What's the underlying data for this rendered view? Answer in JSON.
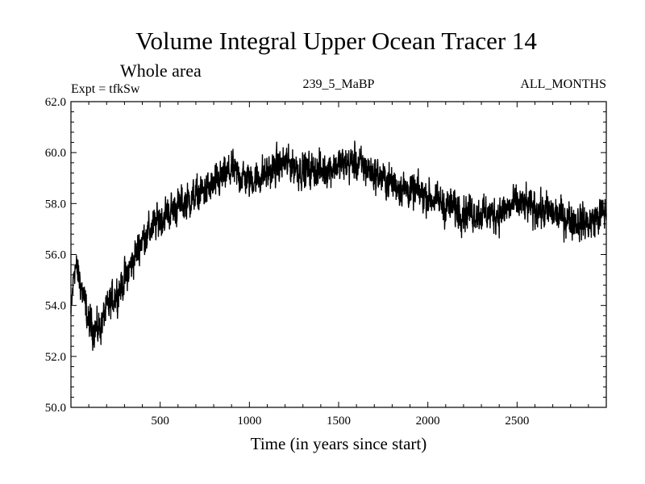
{
  "chart_data": {
    "type": "line",
    "title": "Volume Integral Upper Ocean Tracer 14",
    "subtitle": "Whole area",
    "experiment_label": "Expt = tfkSw",
    "run_label": "239_5_MaBP",
    "months_label": "ALL_MONTHS",
    "xlabel": "Time (in years since start)",
    "ylabel": "",
    "xlim": [
      0,
      3000
    ],
    "ylim": [
      50.0,
      62.0
    ],
    "x_ticks": [
      500,
      1000,
      1500,
      2000,
      2500
    ],
    "x_tick_labels": [
      "500",
      "1000",
      "1500",
      "2000",
      "2500"
    ],
    "y_ticks": [
      50,
      52,
      54,
      56,
      58,
      60,
      62
    ],
    "y_tick_labels": [
      "50.0",
      "52.0",
      "54.0",
      "56.0",
      "58.0",
      "60.0",
      "62.0"
    ],
    "grid": false,
    "series": [
      {
        "name": "tracer14",
        "color": "#000000",
        "trend": {
          "x": [
            0,
            20,
            50,
            100,
            150,
            200,
            300,
            400,
            500,
            600,
            700,
            800,
            900,
            1000,
            1100,
            1200,
            1300,
            1400,
            1500,
            1600,
            1700,
            1800,
            1900,
            2000,
            2100,
            2200,
            2300,
            2400,
            2500,
            2600,
            2700,
            2800,
            2900,
            3000
          ],
          "y": [
            53.6,
            55.6,
            55.0,
            53.3,
            53.0,
            53.8,
            55.0,
            56.6,
            57.4,
            57.9,
            58.3,
            58.7,
            59.3,
            58.9,
            59.2,
            59.6,
            59.3,
            59.3,
            59.5,
            59.6,
            59.2,
            58.8,
            58.5,
            58.3,
            57.9,
            57.7,
            57.6,
            57.6,
            58.0,
            57.8,
            57.6,
            57.4,
            57.2,
            57.7
          ]
        },
        "noise_amplitude": 0.55,
        "samples": 3000,
        "observed_min": 51.7,
        "observed_max": 60.8
      }
    ]
  }
}
